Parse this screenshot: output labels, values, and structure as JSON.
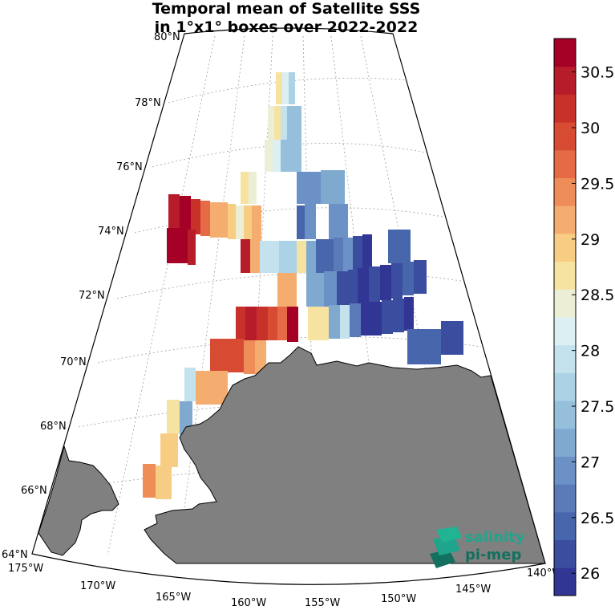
{
  "title": {
    "line1": "Temporal mean of Satellite SSS",
    "line2": "in 1°x1° boxes over 2022-2022"
  },
  "lat_labels": [
    "80°N",
    "78°N",
    "76°N",
    "74°N",
    "72°N",
    "70°N",
    "68°N",
    "66°N",
    "64°N"
  ],
  "lon_labels": [
    "175°W",
    "170°W",
    "165°W",
    "160°W",
    "155°W",
    "150°W",
    "145°W",
    "140°W"
  ],
  "colorbar": {
    "ticks": [
      "30.5",
      "30",
      "29.5",
      "29",
      "28.5",
      "28",
      "27.5",
      "27",
      "26.5",
      "26"
    ],
    "range": [
      25.8,
      30.8
    ],
    "colors": [
      "#313695",
      "#3a4d9f",
      "#4866ac",
      "#5a7bb8",
      "#6b91c6",
      "#80a9d0",
      "#95bfdb",
      "#abd3e5",
      "#c3e2ee",
      "#dceff2",
      "#ecefd6",
      "#f7e3a1",
      "#f7cd84",
      "#f4ad6e",
      "#ef8d59",
      "#e56a45",
      "#d84b33",
      "#c8312a",
      "#b71c2a",
      "#a50026"
    ]
  },
  "logo": {
    "line1": "salinity",
    "line2": "pi-mep"
  }
}
